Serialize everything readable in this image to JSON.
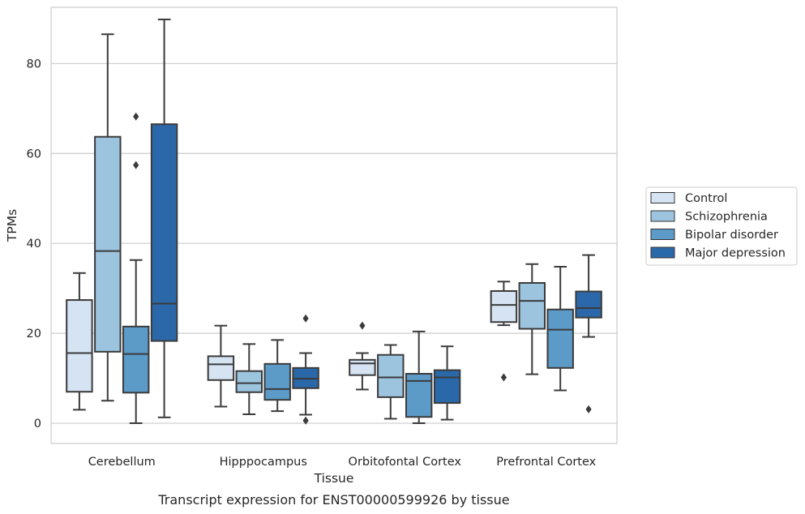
{
  "chart_data": {
    "type": "box",
    "ylabel": "TPMs",
    "xlabel": "Tissue",
    "caption": "Transcript expression for ENST00000599926 by tissue",
    "ylim": [
      -4.5,
      92.5
    ],
    "yticks": [
      0,
      20,
      40,
      60,
      80
    ],
    "grid": "horizontal",
    "legend_position": "right",
    "categories": [
      "Cerebellum",
      "Hipppocampus",
      "Orbitofontal Cortex",
      "Prefrontal Cortex"
    ],
    "series": [
      {
        "name": "Control",
        "color": "#d5e3f2",
        "boxes": [
          {
            "whisker_low": 3,
            "q1": 7,
            "median": 15.6,
            "q3": 27.4,
            "whisker_high": 33.4,
            "outliers": []
          },
          {
            "whisker_low": 3.7,
            "q1": 9.6,
            "median": 13.1,
            "q3": 14.9,
            "whisker_high": 21.7,
            "outliers": []
          },
          {
            "whisker_low": 7.5,
            "q1": 10.7,
            "median": 13.3,
            "q3": 14.1,
            "whisker_high": 15.6,
            "outliers": [
              21.7
            ]
          },
          {
            "whisker_low": 21.8,
            "q1": 22.5,
            "median": 26.3,
            "q3": 29.4,
            "whisker_high": 31.5,
            "outliers": [
              10.2
            ]
          }
        ]
      },
      {
        "name": "Schizophrenia",
        "color": "#9cc4df",
        "boxes": [
          {
            "whisker_low": 5,
            "q1": 15.9,
            "median": 38.3,
            "q3": 63.7,
            "whisker_high": 86.5,
            "outliers": []
          },
          {
            "whisker_low": 2,
            "q1": 6.9,
            "median": 8.9,
            "q3": 11.6,
            "whisker_high": 17.6,
            "outliers": []
          },
          {
            "whisker_low": 1,
            "q1": 5.8,
            "median": 10.2,
            "q3": 15.2,
            "whisker_high": 17.4,
            "outliers": []
          },
          {
            "whisker_low": 10.9,
            "q1": 21,
            "median": 27.2,
            "q3": 31.2,
            "whisker_high": 35.4,
            "outliers": []
          }
        ]
      },
      {
        "name": "Bipolar disorder",
        "color": "#5c9ac8",
        "boxes": [
          {
            "whisker_low": 0,
            "q1": 6.8,
            "median": 15.4,
            "q3": 21.5,
            "whisker_high": 36.3,
            "outliers": [
              57.4,
              68.2
            ]
          },
          {
            "whisker_low": 2.7,
            "q1": 5.2,
            "median": 7.6,
            "q3": 13.2,
            "whisker_high": 18.5,
            "outliers": []
          },
          {
            "whisker_low": 0,
            "q1": 1.4,
            "median": 9.4,
            "q3": 11,
            "whisker_high": 20.4,
            "outliers": []
          },
          {
            "whisker_low": 7.3,
            "q1": 12.3,
            "median": 20.8,
            "q3": 25.3,
            "whisker_high": 34.8,
            "outliers": []
          }
        ]
      },
      {
        "name": "Major depression",
        "color": "#2b68a9",
        "boxes": [
          {
            "whisker_low": 1.3,
            "q1": 18.3,
            "median": 26.6,
            "q3": 66.5,
            "whisker_high": 89.8,
            "outliers": []
          },
          {
            "whisker_low": 1.9,
            "q1": 7.8,
            "median": 9.9,
            "q3": 12.3,
            "whisker_high": 15.6,
            "outliers": [
              0.6,
              23.3
            ]
          },
          {
            "whisker_low": 0.8,
            "q1": 4.5,
            "median": 10.2,
            "q3": 11.8,
            "whisker_high": 17.1,
            "outliers": []
          },
          {
            "whisker_low": 19.2,
            "q1": 23.5,
            "median": 25.6,
            "q3": 29.3,
            "whisker_high": 37.4,
            "outliers": [
              3.1
            ]
          }
        ]
      }
    ]
  }
}
